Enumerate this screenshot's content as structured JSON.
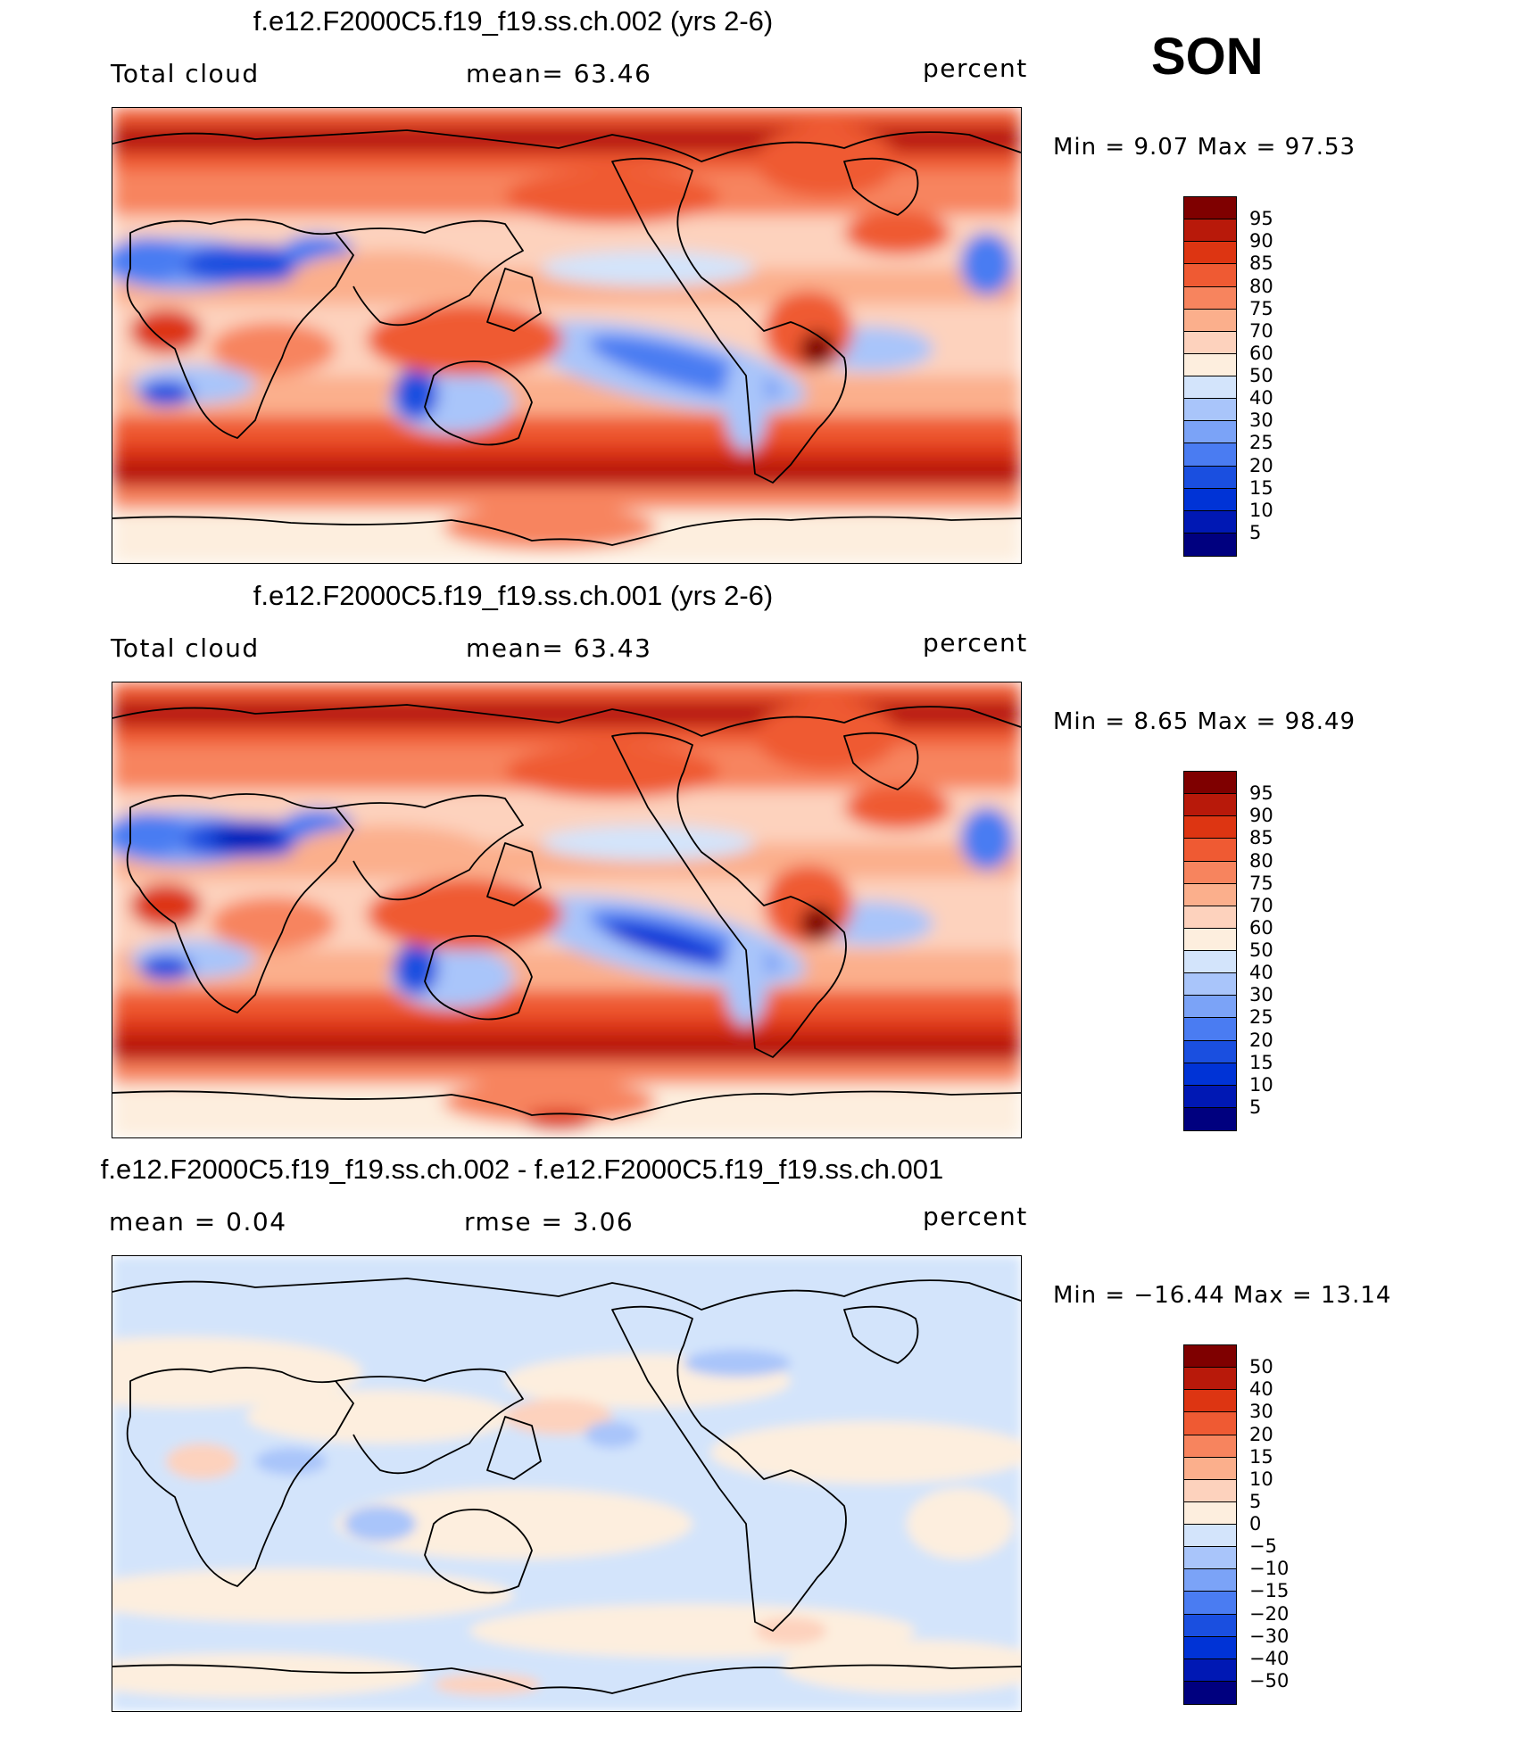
{
  "season": "SON",
  "colors": {
    "abs": [
      "#00007f",
      "#0018b4",
      "#0033d6",
      "#1a4fe0",
      "#4a7cf2",
      "#7ba3f7",
      "#a9c5fa",
      "#d3e4fb",
      "#fdeede",
      "#fdd2bd",
      "#fbaf8c",
      "#f7845e",
      "#ef5a33",
      "#dd3512",
      "#b8190a",
      "#7f0000"
    ],
    "diff": [
      "#00007f",
      "#0018b4",
      "#0033d6",
      "#1a4fe0",
      "#4a7cf2",
      "#7ba3f7",
      "#a9c5fa",
      "#d3e4fb",
      "#fdeede",
      "#fdd2bd",
      "#fbaf8c",
      "#f7845e",
      "#ef5a33",
      "#dd3512",
      "#b8190a",
      "#7f0000"
    ]
  },
  "panels": [
    {
      "title": "f.e12.F2000C5.f19_f19.ss.ch.002 (yrs 2-6)",
      "left_label": "Total cloud",
      "center_label": "mean=   63.46",
      "units": "percent",
      "minmax": "Min =    9.07 Max =   97.53",
      "cbar_ticks": [
        "95",
        "90",
        "85",
        "80",
        "75",
        "70",
        "60",
        "50",
        "40",
        "30",
        "25",
        "20",
        "15",
        "10",
        "5"
      ],
      "palette": "abs"
    },
    {
      "title": "f.e12.F2000C5.f19_f19.ss.ch.001 (yrs 2-6)",
      "left_label": "Total cloud",
      "center_label": "mean=   63.43",
      "units": "percent",
      "minmax": "Min =    8.65 Max =   98.49",
      "cbar_ticks": [
        "95",
        "90",
        "85",
        "80",
        "75",
        "70",
        "60",
        "50",
        "40",
        "30",
        "25",
        "20",
        "15",
        "10",
        "5"
      ],
      "palette": "abs"
    },
    {
      "title": "f.e12.F2000C5.f19_f19.ss.ch.002 - f.e12.F2000C5.f19_f19.ss.ch.001",
      "left_label": "mean =    0.04",
      "center_label": "rmse =    3.06",
      "units": "percent",
      "minmax": "Min = −16.44  Max =   13.14",
      "cbar_ticks": [
        "50",
        "40",
        "30",
        "20",
        "15",
        "10",
        "5",
        "0",
        "−5",
        "−10",
        "−15",
        "−20",
        "−30",
        "−40",
        "−50"
      ],
      "palette": "diff"
    }
  ],
  "chart_data": [
    {
      "type": "heatmap",
      "title": "f.e12.F2000C5.f19_f19.ss.ch.002 (yrs 2-6)",
      "variable": "Total cloud",
      "units": "percent",
      "mean": 63.46,
      "min": 9.07,
      "max": 97.53,
      "contour_levels": [
        5,
        10,
        15,
        20,
        25,
        30,
        40,
        50,
        60,
        70,
        75,
        80,
        85,
        90,
        95
      ]
    },
    {
      "type": "heatmap",
      "title": "f.e12.F2000C5.f19_f19.ss.ch.001 (yrs 2-6)",
      "variable": "Total cloud",
      "units": "percent",
      "mean": 63.43,
      "min": 8.65,
      "max": 98.49,
      "contour_levels": [
        5,
        10,
        15,
        20,
        25,
        30,
        40,
        50,
        60,
        70,
        75,
        80,
        85,
        90,
        95
      ]
    },
    {
      "type": "heatmap",
      "title": "f.e12.F2000C5.f19_f19.ss.ch.002 - f.e12.F2000C5.f19_f19.ss.ch.001",
      "units": "percent",
      "mean": 0.04,
      "rmse": 3.06,
      "min": -16.44,
      "max": 13.14,
      "contour_levels": [
        -50,
        -40,
        -30,
        -20,
        -15,
        -10,
        -5,
        0,
        5,
        10,
        15,
        20,
        30,
        40,
        50
      ]
    }
  ]
}
